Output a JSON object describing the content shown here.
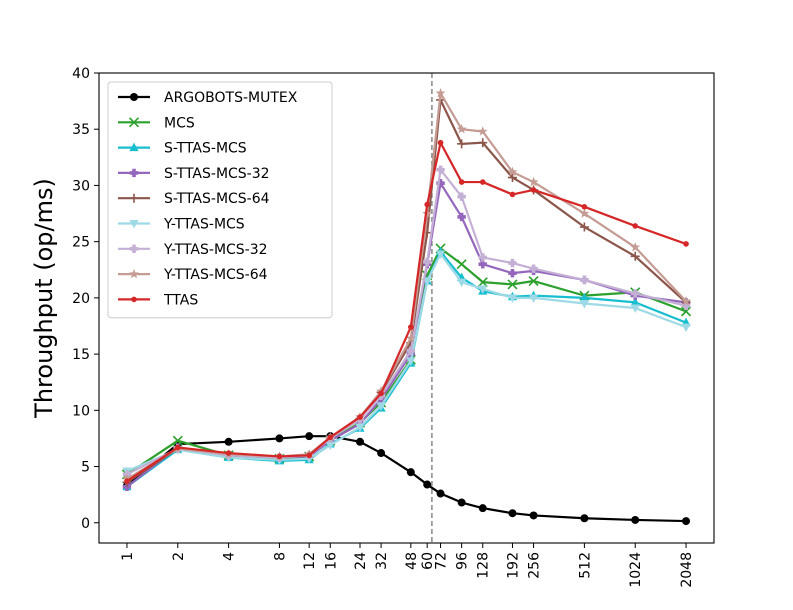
{
  "chart_data": {
    "type": "line",
    "title": "",
    "xlabel": "",
    "ylabel": "Throughput (op/ms)",
    "ylim": [
      -1.8,
      40
    ],
    "yticks": [
      0,
      5,
      10,
      15,
      20,
      25,
      30,
      35,
      40
    ],
    "x_scale": "log2",
    "x": [
      1,
      2,
      4,
      8,
      12,
      16,
      24,
      32,
      48,
      60,
      72,
      96,
      128,
      192,
      256,
      512,
      1024,
      2048
    ],
    "xtick_labels": [
      "1",
      "2",
      "4",
      "8",
      "12",
      "16",
      "24",
      "32",
      "48",
      "60",
      "72",
      "96",
      "128",
      "192",
      "256",
      "512",
      "1024",
      "2048"
    ],
    "vline": {
      "x": 64,
      "style": "dashed",
      "color": "#7f7f7f"
    },
    "legend_position": "upper-left",
    "series": [
      {
        "name": "ARGOBOTS-MUTEX",
        "color": "#000000",
        "marker": "circle",
        "points": [
          [
            1,
            3.3
          ],
          [
            2,
            7.0
          ],
          [
            4,
            7.2
          ],
          [
            8,
            7.5
          ],
          [
            12,
            7.7
          ],
          [
            16,
            7.7
          ],
          [
            24,
            7.2
          ],
          [
            32,
            6.2
          ],
          [
            48,
            4.5
          ],
          [
            60,
            3.4
          ],
          [
            72,
            2.6
          ],
          [
            96,
            1.8
          ],
          [
            128,
            1.3
          ],
          [
            192,
            0.85
          ],
          [
            256,
            0.65
          ],
          [
            512,
            0.4
          ],
          [
            1024,
            0.25
          ],
          [
            2048,
            0.15
          ]
        ]
      },
      {
        "name": "MCS",
        "color": "#2ca02c",
        "marker": "x",
        "points": [
          [
            1,
            4.3
          ],
          [
            2,
            7.3
          ],
          [
            4,
            6.0
          ],
          [
            8,
            5.7
          ],
          [
            12,
            5.9
          ],
          [
            16,
            7.3
          ],
          [
            24,
            8.9
          ],
          [
            32,
            10.7
          ],
          [
            48,
            14.5
          ],
          [
            60,
            22.0
          ],
          [
            72,
            24.4
          ],
          [
            96,
            23.0
          ],
          [
            128,
            21.4
          ],
          [
            192,
            21.2
          ],
          [
            256,
            21.5
          ],
          [
            512,
            20.2
          ],
          [
            1024,
            20.5
          ],
          [
            2048,
            18.8
          ]
        ]
      },
      {
        "name": "S-TTAS-MCS",
        "color": "#17becf",
        "marker": "triangle-up",
        "points": [
          [
            1,
            3.2
          ],
          [
            2,
            6.5
          ],
          [
            4,
            5.8
          ],
          [
            8,
            5.5
          ],
          [
            12,
            5.6
          ],
          [
            16,
            7.0
          ],
          [
            24,
            8.4
          ],
          [
            32,
            10.2
          ],
          [
            48,
            14.2
          ],
          [
            60,
            21.5
          ],
          [
            72,
            24.1
          ],
          [
            96,
            21.8
          ],
          [
            128,
            20.6
          ],
          [
            192,
            20.1
          ],
          [
            256,
            20.2
          ],
          [
            512,
            20.0
          ],
          [
            1024,
            19.6
          ],
          [
            2048,
            17.8
          ]
        ]
      },
      {
        "name": "S-TTAS-MCS-32",
        "color": "#9467bd",
        "marker": "plus-filled",
        "points": [
          [
            1,
            3.2
          ],
          [
            2,
            6.7
          ],
          [
            4,
            6.0
          ],
          [
            8,
            5.8
          ],
          [
            12,
            5.9
          ],
          [
            16,
            7.3
          ],
          [
            24,
            8.8
          ],
          [
            32,
            11.0
          ],
          [
            48,
            15.0
          ],
          [
            60,
            23.0
          ],
          [
            72,
            30.2
          ],
          [
            96,
            27.2
          ],
          [
            128,
            23.0
          ],
          [
            192,
            22.2
          ],
          [
            256,
            22.4
          ],
          [
            512,
            21.6
          ],
          [
            1024,
            20.2
          ],
          [
            2048,
            19.6
          ]
        ]
      },
      {
        "name": "S-TTAS-MCS-64",
        "color": "#8c564b",
        "marker": "plus",
        "points": [
          [
            1,
            3.6
          ],
          [
            2,
            6.6
          ],
          [
            4,
            6.0
          ],
          [
            8,
            5.8
          ],
          [
            12,
            6.0
          ],
          [
            16,
            7.5
          ],
          [
            24,
            9.2
          ],
          [
            32,
            11.6
          ],
          [
            48,
            16.0
          ],
          [
            60,
            25.8
          ],
          [
            72,
            37.6
          ],
          [
            96,
            33.7
          ],
          [
            128,
            33.8
          ],
          [
            192,
            30.7
          ],
          [
            256,
            29.6
          ],
          [
            512,
            26.3
          ],
          [
            1024,
            23.7
          ],
          [
            2048,
            19.6
          ]
        ]
      },
      {
        "name": "Y-TTAS-MCS",
        "color": "#9edae5",
        "marker": "triangle-down",
        "points": [
          [
            1,
            4.6
          ],
          [
            2,
            6.5
          ],
          [
            4,
            5.8
          ],
          [
            8,
            5.6
          ],
          [
            12,
            5.7
          ],
          [
            16,
            6.9
          ],
          [
            24,
            8.5
          ],
          [
            32,
            10.4
          ],
          [
            48,
            14.4
          ],
          [
            60,
            21.5
          ],
          [
            72,
            23.9
          ],
          [
            96,
            21.4
          ],
          [
            128,
            20.8
          ],
          [
            192,
            20.0
          ],
          [
            256,
            20.0
          ],
          [
            512,
            19.5
          ],
          [
            1024,
            19.1
          ],
          [
            2048,
            17.4
          ]
        ]
      },
      {
        "name": "Y-TTAS-MCS-32",
        "color": "#c5b0d5",
        "marker": "plus-filled",
        "points": [
          [
            1,
            4.3
          ],
          [
            2,
            6.6
          ],
          [
            4,
            6.0
          ],
          [
            8,
            5.8
          ],
          [
            12,
            6.0
          ],
          [
            16,
            7.5
          ],
          [
            24,
            9.2
          ],
          [
            32,
            11.3
          ],
          [
            48,
            15.3
          ],
          [
            60,
            23.2
          ],
          [
            72,
            31.4
          ],
          [
            96,
            29.0
          ],
          [
            128,
            23.6
          ],
          [
            192,
            23.1
          ],
          [
            256,
            22.6
          ],
          [
            512,
            21.6
          ],
          [
            1024,
            20.4
          ],
          [
            2048,
            19.3
          ]
        ]
      },
      {
        "name": "Y-TTAS-MCS-64",
        "color": "#c49c94",
        "marker": "star",
        "points": [
          [
            1,
            3.9
          ],
          [
            2,
            6.6
          ],
          [
            4,
            6.1
          ],
          [
            8,
            5.9
          ],
          [
            12,
            6.1
          ],
          [
            16,
            7.6
          ],
          [
            24,
            9.4
          ],
          [
            32,
            11.7
          ],
          [
            48,
            16.4
          ],
          [
            60,
            27.5
          ],
          [
            72,
            38.2
          ],
          [
            96,
            35.0
          ],
          [
            128,
            34.8
          ],
          [
            192,
            31.2
          ],
          [
            256,
            30.3
          ],
          [
            512,
            27.5
          ],
          [
            1024,
            24.5
          ],
          [
            2048,
            19.7
          ]
        ]
      },
      {
        "name": "TTAS",
        "color": "#d62728",
        "marker": "small-dot",
        "points": [
          [
            1,
            3.7
          ],
          [
            2,
            6.7
          ],
          [
            4,
            6.2
          ],
          [
            8,
            5.9
          ],
          [
            12,
            6.0
          ],
          [
            16,
            7.6
          ],
          [
            24,
            9.4
          ],
          [
            32,
            11.5
          ],
          [
            48,
            17.4
          ],
          [
            60,
            28.3
          ],
          [
            72,
            33.8
          ],
          [
            96,
            30.3
          ],
          [
            128,
            30.3
          ],
          [
            192,
            29.2
          ],
          [
            256,
            29.6
          ],
          [
            512,
            28.1
          ],
          [
            1024,
            26.4
          ],
          [
            2048,
            24.8
          ]
        ]
      }
    ]
  }
}
